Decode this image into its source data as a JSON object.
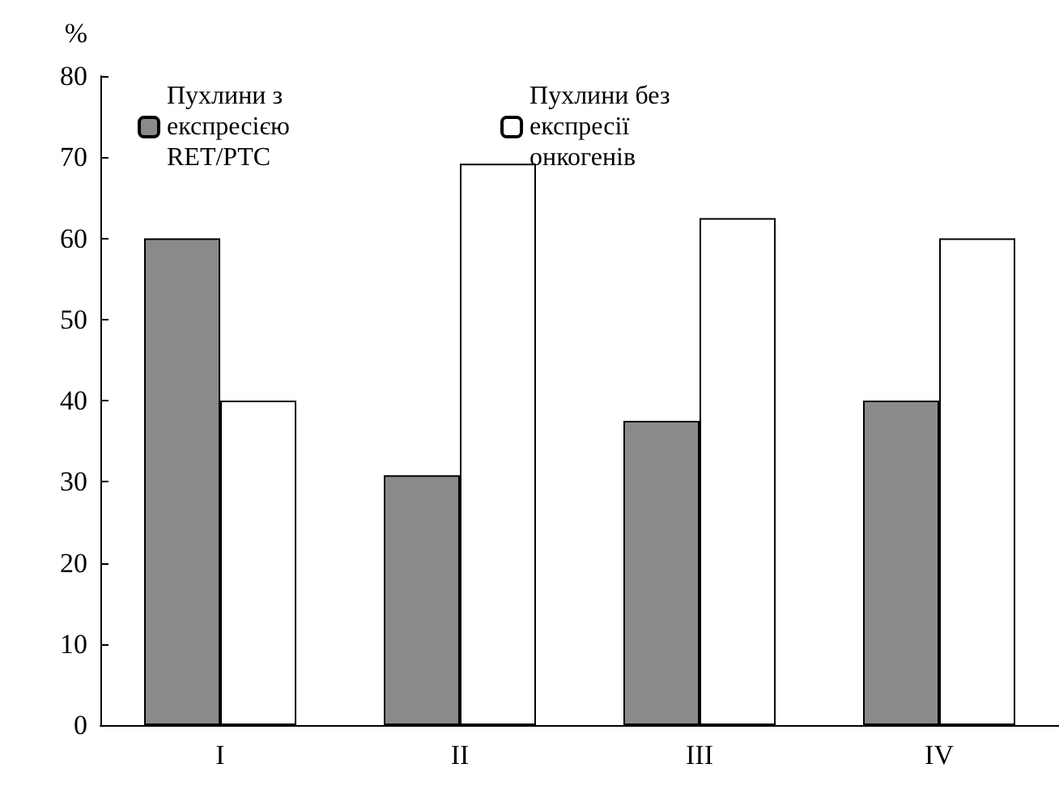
{
  "chart_data": {
    "type": "bar",
    "ylabel": "%",
    "categories": [
      "I",
      "II",
      "III",
      "IV"
    ],
    "series": [
      {
        "name": "Пухлини з експресією RET/PTC",
        "color": "#8a8a8a",
        "values": [
          60,
          30.8,
          37.5,
          40
        ]
      },
      {
        "name": "Пухлини без експресії онкогенів",
        "color": "#ffffff",
        "values": [
          40,
          69.2,
          62.5,
          60
        ]
      }
    ],
    "ylim": [
      0,
      80
    ],
    "yticks": [
      0,
      10,
      20,
      30,
      40,
      50,
      60,
      70,
      80
    ],
    "grid": false,
    "legend": "top left"
  }
}
